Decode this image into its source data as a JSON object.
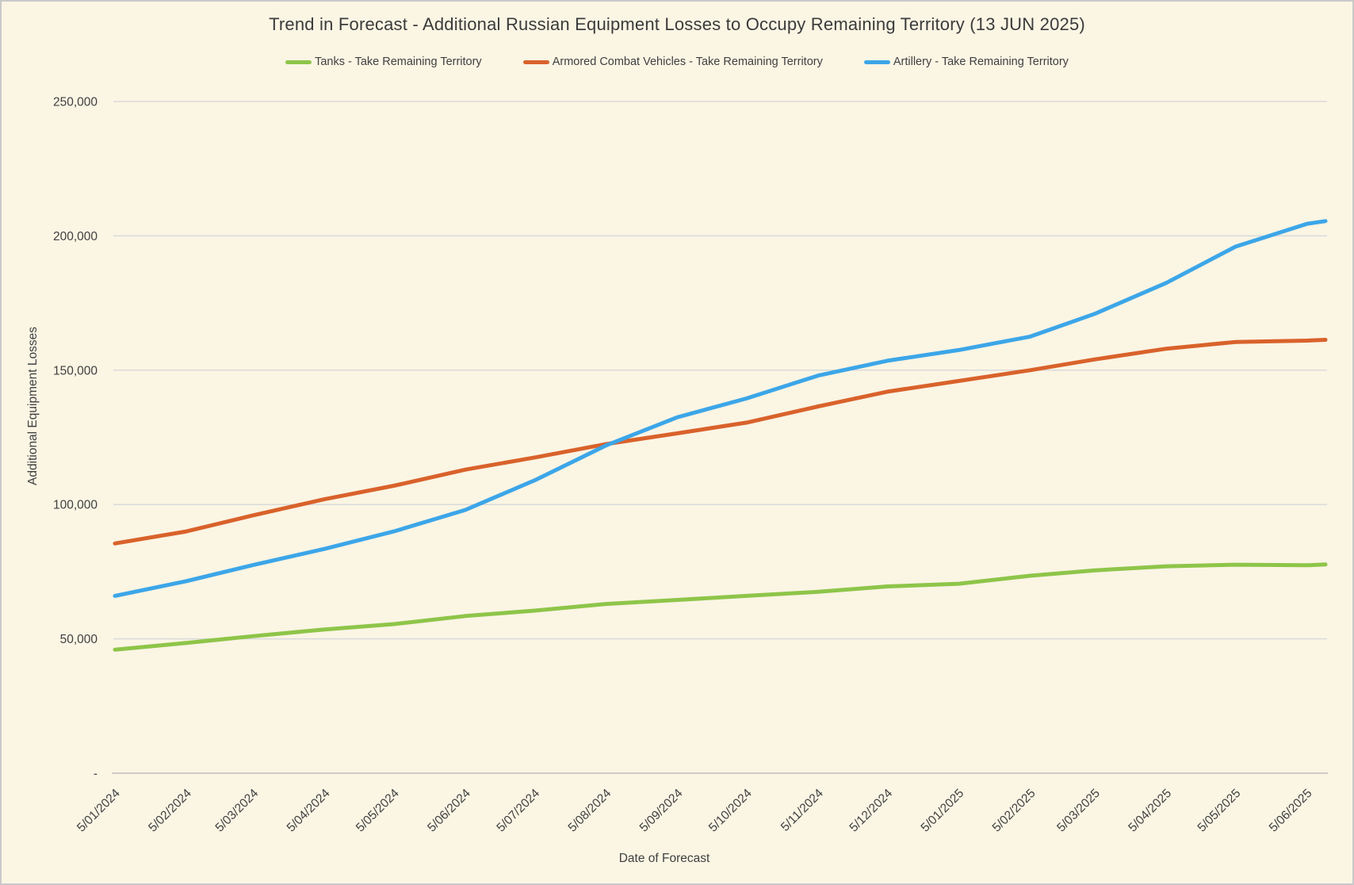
{
  "title": "Trend in Forecast - Additional Russian Equipment Losses to Occupy Remaining Territory (13 JUN 2025)",
  "colors": {
    "background": "#FBF5E4",
    "frame_border": "#C9C9C9",
    "gridline": "#DADADA",
    "axis_line": "#BFBFBF",
    "text": "#3F3F3F",
    "tick_text": "#404040"
  },
  "y_axis": {
    "title": "Additional Equipment Losses",
    "tick_labels": [
      "-",
      "50,000",
      "100,000",
      "150,000",
      "200,000",
      "250,000"
    ],
    "tick_values": [
      0,
      50000,
      100000,
      150000,
      200000,
      250000
    ]
  },
  "x_axis": {
    "title": "Date of Forecast",
    "tick_labels": [
      "5/01/2024",
      "5/02/2024",
      "5/03/2024",
      "5/04/2024",
      "5/05/2024",
      "5/06/2024",
      "5/07/2024",
      "5/08/2024",
      "5/09/2024",
      "5/10/2024",
      "5/11/2024",
      "5/12/2024",
      "5/01/2025",
      "5/02/2025",
      "5/03/2025",
      "5/04/2025",
      "5/05/2025",
      "5/06/2025"
    ]
  },
  "chart_data": {
    "type": "line",
    "title": "Trend in Forecast - Additional Russian Equipment Losses to Occupy Remaining Territory (13 JUN 2025)",
    "xlabel": "Date of Forecast",
    "ylabel": "Additional Equipment Losses",
    "ylim": [
      0,
      250000
    ],
    "grid": true,
    "legend_position": "top",
    "x_tick_labels": [
      "5/01/2024",
      "5/02/2024",
      "5/03/2024",
      "5/04/2024",
      "5/05/2024",
      "5/06/2024",
      "5/07/2024",
      "5/08/2024",
      "5/09/2024",
      "5/10/2024",
      "5/11/2024",
      "5/12/2024",
      "5/01/2025",
      "5/02/2025",
      "5/03/2025",
      "5/04/2025",
      "5/05/2025",
      "5/06/2025"
    ],
    "x_tick_day_offsets": [
      0,
      31,
      60,
      91,
      121,
      152,
      182,
      213,
      244,
      274,
      305,
      335,
      366,
      397,
      425,
      456,
      486,
      517
    ],
    "point_day_offsets": [
      0,
      31,
      60,
      91,
      121,
      152,
      182,
      213,
      244,
      274,
      305,
      335,
      366,
      397,
      425,
      456,
      486,
      517,
      525
    ],
    "x_total_days": 525,
    "series": [
      {
        "name": "Tanks - Take Remaining Territory",
        "color": "#8EC549",
        "values": [
          46000,
          48500,
          51000,
          53500,
          55500,
          58500,
          60500,
          63000,
          64500,
          66000,
          67500,
          69500,
          70500,
          73500,
          75500,
          77000,
          77600,
          77400,
          77700
        ]
      },
      {
        "name": "Armored Combat Vehicles - Take Remaining Territory",
        "color": "#D9622B",
        "values": [
          85500,
          90000,
          96000,
          102000,
          107000,
          113000,
          117500,
          122500,
          126500,
          130500,
          136500,
          142000,
          146000,
          150000,
          154000,
          158000,
          160500,
          161000,
          161300
        ]
      },
      {
        "name": "Artillery - Take Remaining Territory",
        "color": "#3CA6E8",
        "values": [
          66000,
          71500,
          77500,
          83500,
          90000,
          98000,
          109000,
          122000,
          132500,
          139500,
          148000,
          153500,
          157500,
          162500,
          171000,
          182500,
          196000,
          204500,
          205500
        ]
      }
    ]
  }
}
